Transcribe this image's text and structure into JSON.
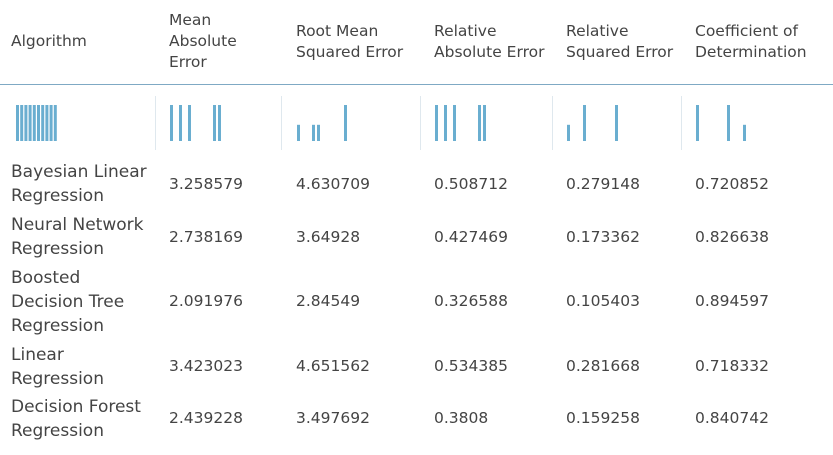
{
  "columns": [
    "Algorithm",
    "Mean Absolute Error",
    "Root Mean Squared Error",
    "Relative Absolute Error",
    "Relative Squared Error",
    "Coefficient of Determination"
  ],
  "header_lines": [
    [
      "Algorithm"
    ],
    [
      "Mean",
      "Absolute",
      "Error"
    ],
    [
      "Root Mean",
      "Squared Error"
    ],
    [
      "Relative",
      "Absolute Error"
    ],
    [
      "Relative",
      "Squared Error"
    ],
    [
      "Coefficient of",
      "Determination"
    ]
  ],
  "rows": [
    {
      "name_lines": [
        "Bayesian Linear",
        "Regression"
      ],
      "values": [
        "3.258579",
        "4.630709",
        "0.508712",
        "0.279148",
        "0.720852"
      ]
    },
    {
      "name_lines": [
        "Neural Network",
        "Regression"
      ],
      "values": [
        "2.738169",
        "3.64928",
        "0.427469",
        "0.173362",
        "0.826638"
      ]
    },
    {
      "name_lines": [
        "Boosted",
        "Decision Tree",
        "Regression"
      ],
      "values": [
        "2.091976",
        "2.84549",
        "0.326588",
        "0.105403",
        "0.894597"
      ]
    },
    {
      "name_lines": [
        "Linear",
        "Regression"
      ],
      "values": [
        "3.423023",
        "4.651562",
        "0.534385",
        "0.281668",
        "0.718332"
      ]
    },
    {
      "name_lines": [
        "Decision Forest",
        "Regression"
      ],
      "values": [
        "2.439228",
        "3.497692",
        "0.3808",
        "0.159258",
        "0.840742"
      ]
    }
  ],
  "histogram_color": "#6aaed0",
  "header_rule_color": "#7fa9c4",
  "histograms": [
    {
      "column": "Algorithm",
      "bar_heights": [
        1,
        1,
        1,
        1,
        1,
        1,
        1,
        1,
        1,
        1
      ]
    },
    {
      "column": "Mean Absolute Error",
      "bar_heights": [
        1,
        1,
        1,
        1,
        1
      ]
    },
    {
      "column": "Root Mean Squared Error",
      "bar_heights": [
        0.45,
        0.45,
        0.45,
        1
      ]
    },
    {
      "column": "Relative Absolute Error",
      "bar_heights": [
        1,
        1,
        1,
        1,
        1
      ]
    },
    {
      "column": "Relative Squared Error",
      "bar_heights": [
        0.45,
        1,
        1
      ]
    },
    {
      "column": "Coefficient of Determination",
      "bar_heights": [
        1,
        1,
        0.45
      ]
    }
  ]
}
